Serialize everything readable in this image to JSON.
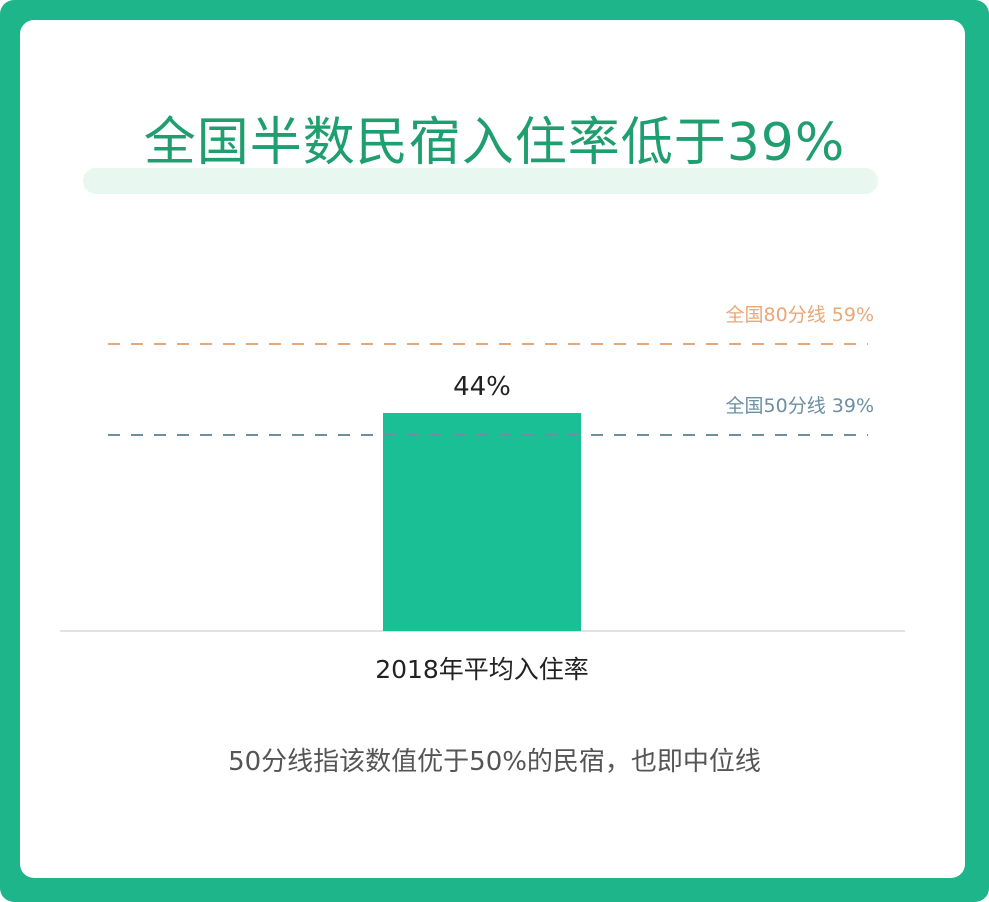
{
  "title": "全国半数民宿入住率低于39%",
  "footnote": "50分线指该数值优于50%的民宿，也即中位线",
  "colors": {
    "frame": "#1fb58b",
    "bar": "#1bbf95",
    "title": "#1f9e6f",
    "ref_80": "#e8a778",
    "ref_50": "#6c8fa3"
  },
  "chart_data": {
    "type": "bar",
    "title": "全国半数民宿入住率低于39%",
    "categories": [
      "2018年平均入住率"
    ],
    "values": [
      44
    ],
    "value_labels": [
      "44%"
    ],
    "unit": "%",
    "ylim": [
      0,
      70
    ],
    "grid": false,
    "reference_lines": [
      {
        "label": "全国80分线 59%",
        "value": 59,
        "color": "#e8a778"
      },
      {
        "label": "全国50分线 39%",
        "value": 39,
        "color": "#6c8fa3"
      }
    ]
  }
}
